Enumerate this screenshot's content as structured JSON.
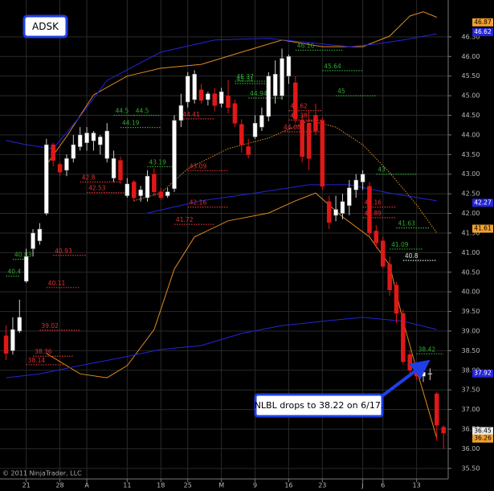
{
  "chart_data": {
    "type": "candlestick",
    "title": "ADSK",
    "annotation": "NLBL drops to 38.22 on 6/17.",
    "copyright": "© 2011 NinjaTrader, LLC",
    "xlim": [
      -3.9,
      62.7
    ],
    "ylim": [
      35.23,
      47.44
    ],
    "grid": true,
    "up_color": "#ffffff",
    "down_color": "#e01818",
    "xticks": [
      {
        "value": 0,
        "label": "21"
      },
      {
        "value": 5,
        "label": "28"
      },
      {
        "value": 9,
        "label": "A"
      },
      {
        "value": 15,
        "label": "11"
      },
      {
        "value": 20,
        "label": "18"
      },
      {
        "value": 24,
        "label": "25"
      },
      {
        "value": 29,
        "label": "M"
      },
      {
        "value": 34,
        "label": "9"
      },
      {
        "value": 39,
        "label": "16"
      },
      {
        "value": 44,
        "label": "23"
      },
      {
        "value": 50,
        "label": "J"
      },
      {
        "value": 53,
        "label": "6"
      },
      {
        "value": 58,
        "label": "13"
      }
    ],
    "yticks": [
      {
        "value": 35.5,
        "label": "35.50"
      },
      {
        "value": 36,
        "label": "36.00"
      },
      {
        "value": 36.5,
        "label": "36.50"
      },
      {
        "value": 37,
        "label": "37.00"
      },
      {
        "value": 37.5,
        "label": "37.50"
      },
      {
        "value": 38,
        "label": "38.00"
      },
      {
        "value": 38.5,
        "label": "38.50"
      },
      {
        "value": 39,
        "label": "39.00"
      },
      {
        "value": 39.5,
        "label": "39.50"
      },
      {
        "value": 40,
        "label": "40.00"
      },
      {
        "value": 40.5,
        "label": "40.50"
      },
      {
        "value": 41,
        "label": "41.00"
      },
      {
        "value": 41.5,
        "label": "41.50"
      },
      {
        "value": 42,
        "label": "42.00"
      },
      {
        "value": 42.5,
        "label": "42.50"
      },
      {
        "value": 43,
        "label": "43.00"
      },
      {
        "value": 43.5,
        "label": "43.50"
      },
      {
        "value": 44,
        "label": "44.00"
      },
      {
        "value": 44.5,
        "label": "44.50"
      },
      {
        "value": 45,
        "label": "45.00"
      },
      {
        "value": 45.5,
        "label": "45.50"
      },
      {
        "value": 46,
        "label": "46.00"
      },
      {
        "value": 46.5,
        "label": "46.50"
      }
    ],
    "candles": [
      {
        "x": -3,
        "open": 38.88,
        "high": 39.14,
        "low": 38.26,
        "close": 38.43
      },
      {
        "x": -2,
        "open": 38.5,
        "high": 39.35,
        "low": 38.4,
        "close": 39.04
      },
      {
        "x": -1,
        "open": 39.0,
        "high": 39.8,
        "low": 38.95,
        "close": 39.35
      },
      {
        "x": 0,
        "open": 40.27,
        "high": 41.1,
        "low": 40.23,
        "close": 40.9
      },
      {
        "x": 1,
        "open": 41.1,
        "high": 41.6,
        "low": 40.9,
        "close": 41.5
      },
      {
        "x": 2,
        "open": 41.3,
        "high": 41.75,
        "low": 41.2,
        "close": 41.6
      },
      {
        "x": 3,
        "open": 42.0,
        "high": 43.9,
        "low": 41.95,
        "close": 43.75
      },
      {
        "x": 4,
        "open": 43.75,
        "high": 43.8,
        "low": 43.2,
        "close": 43.35
      },
      {
        "x": 5,
        "open": 43.25,
        "high": 43.3,
        "low": 42.95,
        "close": 43.05
      },
      {
        "x": 6,
        "open": 43.1,
        "high": 43.5,
        "low": 42.95,
        "close": 43.4
      },
      {
        "x": 7,
        "open": 43.4,
        "high": 44.0,
        "low": 43.3,
        "close": 43.75
      },
      {
        "x": 8,
        "open": 43.7,
        "high": 44.2,
        "low": 43.6,
        "close": 44.0
      },
      {
        "x": 9,
        "open": 43.8,
        "high": 44.2,
        "low": 43.6,
        "close": 44.05
      },
      {
        "x": 10,
        "open": 43.85,
        "high": 44.1,
        "low": 43.6,
        "close": 44.05
      },
      {
        "x": 11,
        "open": 43.75,
        "high": 44.0,
        "low": 43.5,
        "close": 43.95
      },
      {
        "x": 12,
        "open": 43.4,
        "high": 44.3,
        "low": 43.3,
        "close": 44.1
      },
      {
        "x": 13,
        "open": 42.9,
        "high": 43.6,
        "low": 42.8,
        "close": 43.4
      },
      {
        "x": 14,
        "open": 43.35,
        "high": 43.45,
        "low": 42.75,
        "close": 42.85
      },
      {
        "x": 15,
        "open": 42.45,
        "high": 42.9,
        "low": 42.4,
        "close": 42.75
      },
      {
        "x": 16,
        "open": 42.8,
        "high": 42.85,
        "low": 42.3,
        "close": 42.4
      },
      {
        "x": 17,
        "open": 42.45,
        "high": 42.7,
        "low": 42.3,
        "close": 42.6
      },
      {
        "x": 18,
        "open": 42.4,
        "high": 43.1,
        "low": 42.3,
        "close": 42.95
      },
      {
        "x": 19,
        "open": 43.0,
        "high": 43.15,
        "low": 42.45,
        "close": 42.55
      },
      {
        "x": 20,
        "open": 42.55,
        "high": 42.65,
        "low": 42.35,
        "close": 42.4
      },
      {
        "x": 21,
        "open": 42.45,
        "high": 42.65,
        "low": 42.4,
        "close": 42.55
      },
      {
        "x": 22,
        "open": 42.63,
        "high": 44.5,
        "low": 42.55,
        "close": 44.37
      },
      {
        "x": 23,
        "open": 44.37,
        "high": 45.05,
        "low": 44.2,
        "close": 44.75
      },
      {
        "x": 24,
        "open": 44.84,
        "high": 45.6,
        "low": 44.7,
        "close": 45.5
      },
      {
        "x": 25,
        "open": 44.9,
        "high": 45.65,
        "low": 44.8,
        "close": 45.55
      },
      {
        "x": 26,
        "open": 45.15,
        "high": 45.3,
        "low": 44.8,
        "close": 44.88
      },
      {
        "x": 27,
        "open": 44.9,
        "high": 45.1,
        "low": 44.75,
        "close": 45.05
      },
      {
        "x": 28,
        "open": 45.05,
        "high": 45.2,
        "low": 44.6,
        "close": 44.75
      },
      {
        "x": 29,
        "open": 44.8,
        "high": 45.2,
        "low": 44.7,
        "close": 45.1
      },
      {
        "x": 30,
        "open": 45.0,
        "high": 45.4,
        "low": 44.55,
        "close": 44.7
      },
      {
        "x": 31,
        "open": 44.8,
        "high": 44.9,
        "low": 44.2,
        "close": 44.3
      },
      {
        "x": 32,
        "open": 44.27,
        "high": 44.4,
        "low": 43.55,
        "close": 43.75
      },
      {
        "x": 33,
        "open": 43.7,
        "high": 43.9,
        "low": 43.4,
        "close": 43.5
      },
      {
        "x": 34,
        "open": 43.95,
        "high": 44.5,
        "low": 43.9,
        "close": 44.3
      },
      {
        "x": 35,
        "open": 44.2,
        "high": 44.7,
        "low": 44.1,
        "close": 44.5
      },
      {
        "x": 36,
        "open": 44.47,
        "high": 45.6,
        "low": 44.35,
        "close": 45.5
      },
      {
        "x": 37,
        "open": 45.0,
        "high": 45.9,
        "low": 44.8,
        "close": 45.55
      },
      {
        "x": 38,
        "open": 45.0,
        "high": 46.2,
        "low": 44.9,
        "close": 45.95
      },
      {
        "x": 39,
        "open": 45.5,
        "high": 46.05,
        "low": 45.3,
        "close": 46.0
      },
      {
        "x": 40,
        "open": 45.33,
        "high": 45.5,
        "low": 44.3,
        "close": 44.41
      },
      {
        "x": 41,
        "open": 44.37,
        "high": 44.5,
        "low": 43.3,
        "close": 43.45
      },
      {
        "x": 42,
        "open": 44.3,
        "high": 44.6,
        "low": 43.1,
        "close": 43.4
      },
      {
        "x": 43,
        "open": 44.5,
        "high": 44.8,
        "low": 44.0,
        "close": 44.1
      },
      {
        "x": 44,
        "open": 44.37,
        "high": 44.45,
        "low": 42.6,
        "close": 42.69
      },
      {
        "x": 45,
        "open": 42.3,
        "high": 42.45,
        "low": 41.6,
        "close": 41.77
      },
      {
        "x": 46,
        "open": 41.95,
        "high": 42.45,
        "low": 41.8,
        "close": 42.1
      },
      {
        "x": 47,
        "open": 42.0,
        "high": 42.5,
        "low": 41.85,
        "close": 42.3
      },
      {
        "x": 48,
        "open": 42.2,
        "high": 42.85,
        "low": 41.95,
        "close": 42.65
      },
      {
        "x": 49,
        "open": 42.6,
        "high": 43.0,
        "low": 42.4,
        "close": 42.85
      },
      {
        "x": 50,
        "open": 42.8,
        "high": 43.1,
        "low": 42.6,
        "close": 43.0
      },
      {
        "x": 51,
        "open": 42.69,
        "high": 42.8,
        "low": 41.4,
        "close": 41.5
      },
      {
        "x": 52,
        "open": 41.55,
        "high": 41.7,
        "low": 41.1,
        "close": 41.25
      },
      {
        "x": 53,
        "open": 41.3,
        "high": 41.4,
        "low": 40.6,
        "close": 40.65
      },
      {
        "x": 54,
        "open": 40.7,
        "high": 40.9,
        "low": 39.9,
        "close": 40.05
      },
      {
        "x": 55,
        "open": 40.17,
        "high": 40.25,
        "low": 39.2,
        "close": 39.45
      },
      {
        "x": 56,
        "open": 39.45,
        "high": 39.55,
        "low": 38.15,
        "close": 38.22
      },
      {
        "x": 57,
        "open": 38.4,
        "high": 38.5,
        "low": 37.9,
        "close": 38.0
      },
      {
        "x": 58,
        "open": 38.1,
        "high": 38.2,
        "low": 37.75,
        "close": 37.85
      },
      {
        "x": 59,
        "open": 37.85,
        "high": 38.15,
        "low": 37.7,
        "close": 37.95
      },
      {
        "x": 60,
        "open": 37.9,
        "high": 38.05,
        "low": 37.75,
        "close": 37.92
      },
      {
        "x": 61,
        "open": 37.4,
        "high": 37.45,
        "low": 36.2,
        "close": 36.6
      },
      {
        "x": 62,
        "open": 36.55,
        "high": 36.6,
        "low": 35.99,
        "close": 36.4
      }
    ],
    "overlays": [
      {
        "color": "#e08a20",
        "dashed": false,
        "x": [
          3,
          6,
          10,
          15,
          20,
          26,
          32,
          38,
          44,
          50,
          54,
          57,
          59,
          61
        ],
        "values": [
          43.24,
          43.96,
          45.02,
          45.5,
          45.7,
          45.8,
          46.11,
          46.42,
          46.25,
          46.25,
          46.52,
          47.03,
          47.14,
          47.0
        ]
      },
      {
        "color": "#e08a20",
        "dashed": false,
        "x": [
          3,
          8,
          12,
          15,
          19,
          22,
          25,
          30,
          36,
          40,
          43,
          47,
          51,
          54,
          56,
          58,
          61
        ],
        "values": [
          38.43,
          37.91,
          37.81,
          38.12,
          39.04,
          40.58,
          41.4,
          41.81,
          42.01,
          42.32,
          42.52,
          41.91,
          41.4,
          40.68,
          39.25,
          38.02,
          36.27
        ]
      },
      {
        "color": "#e08a20",
        "dashed": true,
        "x": [
          16,
          20,
          24,
          30,
          36,
          42,
          46,
          50,
          54,
          58,
          61
        ],
        "values": [
          42.32,
          42.52,
          43.14,
          43.65,
          43.92,
          44.37,
          44.2,
          43.75,
          43.04,
          42.22,
          41.5
        ]
      },
      {
        "color": "#2424d8",
        "dashed": false,
        "x": [
          -3,
          0,
          4,
          8,
          12,
          20,
          28,
          36,
          44,
          48,
          52,
          56,
          61
        ],
        "values": [
          43.86,
          43.75,
          43.65,
          44.47,
          45.39,
          46.11,
          46.42,
          46.46,
          46.32,
          46.25,
          46.32,
          46.42,
          46.58
        ]
      },
      {
        "color": "#2424d8",
        "dashed": false,
        "x": [
          -3,
          2,
          8,
          14,
          20,
          26,
          32,
          38,
          44,
          50,
          56,
          61
        ],
        "values": [
          37.81,
          37.91,
          38.12,
          38.32,
          38.53,
          38.63,
          38.94,
          39.14,
          39.25,
          39.35,
          39.25,
          39.04
        ]
      },
      {
        "color": "#2424d8",
        "dashed": false,
        "x": [
          18,
          26,
          34,
          42,
          48,
          54,
          61
        ],
        "values": [
          42.01,
          42.32,
          42.52,
          42.73,
          42.73,
          42.52,
          42.32
        ]
      }
    ],
    "levels": [
      {
        "value": 40.4,
        "from": -3,
        "to": -1,
        "color": "#2fa82f"
      },
      {
        "value": 40.83,
        "from": -2,
        "to": 0,
        "color": "#2fa82f"
      },
      {
        "value": 40.93,
        "from": 4,
        "to": 9,
        "color": "#e03030"
      },
      {
        "value": 40.11,
        "from": 3,
        "to": 8,
        "color": "#e03030"
      },
      {
        "value": 39.02,
        "from": 2,
        "to": 8,
        "color": "#e03030"
      },
      {
        "value": 38.36,
        "from": 1,
        "to": 7,
        "color": "#e03030"
      },
      {
        "value": 38.14,
        "from": 0,
        "to": 6,
        "color": "#e03030"
      },
      {
        "value": 42.8,
        "from": 8,
        "to": 14,
        "color": "#e03030"
      },
      {
        "value": 42.53,
        "from": 9,
        "to": 15,
        "color": "#e03030"
      },
      {
        "value": 43.19,
        "from": 18,
        "to": 22,
        "color": "#2fa82f"
      },
      {
        "value": 44.19,
        "from": 14,
        "to": 20,
        "color": "#2fa82f"
      },
      {
        "value": 44.5,
        "from": 13,
        "to": 16,
        "color": "#2fa82f"
      },
      {
        "value": 44.5,
        "from": 16,
        "to": 20,
        "color": "#2fa82f"
      },
      {
        "value": 44.41,
        "from": 23,
        "to": 28,
        "color": "#e03030"
      },
      {
        "value": 43.09,
        "from": 24,
        "to": 30,
        "color": "#e03030"
      },
      {
        "value": 42.16,
        "from": 24,
        "to": 30,
        "color": "#e03030"
      },
      {
        "value": 41.72,
        "from": 22,
        "to": 28,
        "color": "#e03030"
      },
      {
        "value": 45.37,
        "from": 31,
        "to": 36,
        "color": "#2fa82f"
      },
      {
        "value": 45.31,
        "from": 31,
        "to": 36,
        "color": "#2fa82f"
      },
      {
        "value": 44.94,
        "from": 33,
        "to": 38,
        "color": "#2fa82f"
      },
      {
        "value": 46.16,
        "from": 40,
        "to": 47,
        "color": "#2fa82f"
      },
      {
        "value": 45.64,
        "from": 44,
        "to": 50,
        "color": "#2fa82f"
      },
      {
        "value": 45,
        "from": 46,
        "to": 52,
        "color": "#2fa82f"
      },
      {
        "value": 44.62,
        "from": 39,
        "to": 44,
        "color": "#e03030"
      },
      {
        "value": 44.38,
        "from": 39,
        "to": 44,
        "color": "#e03030"
      },
      {
        "value": 44.08,
        "from": 38,
        "to": 44,
        "color": "#e03030"
      },
      {
        "value": 42.16,
        "from": 50,
        "to": 55,
        "color": "#e03030"
      },
      {
        "value": 41.89,
        "from": 50,
        "to": 55,
        "color": "#e03030"
      },
      {
        "value": 43,
        "from": 52,
        "to": 58,
        "color": "#2fa82f"
      },
      {
        "value": 41.63,
        "from": 55,
        "to": 60,
        "color": "#2fa82f"
      },
      {
        "value": 41.09,
        "from": 54,
        "to": 59,
        "color": "#2fa82f"
      },
      {
        "value": 40.8,
        "from": 56,
        "to": 61,
        "color": "#cfe8cf"
      },
      {
        "value": 38.42,
        "from": 58,
        "to": 62,
        "color": "#2fa82f"
      }
    ],
    "axis_markers": [
      {
        "value": 46.87,
        "color": "#f0a030"
      },
      {
        "value": 46.62,
        "color": "#2424d8"
      },
      {
        "value": 42.27,
        "color": "#2424d8"
      },
      {
        "value": 41.61,
        "color": "#f0a030"
      },
      {
        "value": 37.92,
        "color": "#2424d8"
      },
      {
        "value": 36.45,
        "color": "#e8e8e8"
      },
      {
        "value": 36.26,
        "color": "#f0a030"
      }
    ]
  }
}
